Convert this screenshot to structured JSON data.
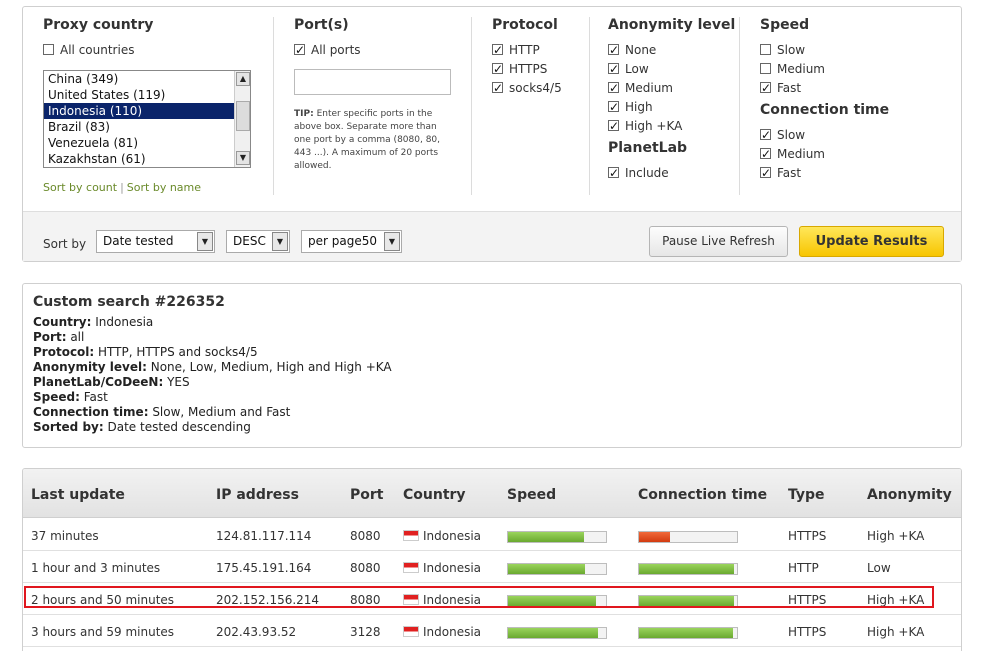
{
  "filters": {
    "proxy_country": {
      "title": "Proxy country",
      "all_label": "All countries",
      "all_checked": false,
      "options": [
        "China (349)",
        "United States (119)",
        "Indonesia (110)",
        "Brazil (83)",
        "Venezuela (81)",
        "Kazakhstan (61)"
      ],
      "selected_index": 2,
      "sort_by_count": "Sort by count",
      "sort_separator": "|",
      "sort_by_name": "Sort by name"
    },
    "ports": {
      "title": "Port(s)",
      "all_label": "All ports",
      "all_checked": true,
      "input_value": "",
      "tip_label": "TIP:",
      "tip_text": "Enter specific ports in the above box. Separate more than one port by a comma (8080, 80, 443 ...). A maximum of 20 ports allowed."
    },
    "protocol": {
      "title": "Protocol",
      "options": [
        {
          "label": "HTTP",
          "checked": true
        },
        {
          "label": "HTTPS",
          "checked": true
        },
        {
          "label": "socks4/5",
          "checked": true
        }
      ]
    },
    "anonymity": {
      "title": "Anonymity level",
      "options": [
        {
          "label": "None",
          "checked": true
        },
        {
          "label": "Low",
          "checked": true
        },
        {
          "label": "Medium",
          "checked": true
        },
        {
          "label": "High",
          "checked": true
        },
        {
          "label": "High +KA",
          "checked": true
        }
      ]
    },
    "planetlab": {
      "title": "PlanetLab",
      "include_label": "Include",
      "include_checked": true
    },
    "speed": {
      "title": "Speed",
      "options": [
        {
          "label": "Slow",
          "checked": false
        },
        {
          "label": "Medium",
          "checked": false
        },
        {
          "label": "Fast",
          "checked": true
        }
      ]
    },
    "connection_time": {
      "title": "Connection time",
      "options": [
        {
          "label": "Slow",
          "checked": true
        },
        {
          "label": "Medium",
          "checked": true
        },
        {
          "label": "Fast",
          "checked": true
        }
      ]
    }
  },
  "sortbar": {
    "label": "Sort by",
    "sort_field": "Date tested",
    "order": "DESC",
    "per_page": "per page50",
    "pause_button": "Pause Live Refresh",
    "update_button": "Update Results"
  },
  "summary": {
    "title": "Custom search #226352",
    "lines": [
      {
        "key": "Country:",
        "value": " Indonesia"
      },
      {
        "key": "Port:",
        "value": " all"
      },
      {
        "key": "Protocol:",
        "value": " HTTP, HTTPS and socks4/5"
      },
      {
        "key": "Anonymity level:",
        "value": " None, Low, Medium, High and High +KA"
      },
      {
        "key": "PlanetLab/CoDeeN:",
        "value": " YES"
      },
      {
        "key": "Speed:",
        "value": " Fast"
      },
      {
        "key": "Connection time:",
        "value": " Slow, Medium and Fast"
      },
      {
        "key": "Sorted by:",
        "value": " Date tested descending"
      }
    ]
  },
  "results": {
    "headers": [
      "Last update",
      "IP address",
      "Port",
      "Country",
      "Speed",
      "Connection time",
      "Type",
      "Anonymity"
    ],
    "rows": [
      {
        "last_update": "37 minutes",
        "ip": "124.81.117.114",
        "port": "8080",
        "country": "Indonesia",
        "speed": 0.78,
        "speed_color": "#6aa930",
        "conn": 0.32,
        "conn_color": "#d23b10",
        "type": "HTTPS",
        "anonymity": "High +KA"
      },
      {
        "last_update": "1 hour and 3 minutes",
        "ip": "175.45.191.164",
        "port": "8080",
        "country": "Indonesia",
        "speed": 0.79,
        "speed_color": "#6aa930",
        "conn": 0.97,
        "conn_color": "#6aa930",
        "type": "HTTP",
        "anonymity": "Low"
      },
      {
        "last_update": "2 hours and 50 minutes",
        "ip": "202.152.156.214",
        "port": "8080",
        "country": "Indonesia",
        "speed": 0.9,
        "speed_color": "#6aa930",
        "conn": 0.97,
        "conn_color": "#6aa930",
        "type": "HTTPS",
        "anonymity": "High +KA"
      },
      {
        "last_update": "3 hours and 59 minutes",
        "ip": "202.43.93.52",
        "port": "3128",
        "country": "Indonesia",
        "speed": 0.92,
        "speed_color": "#6aa930",
        "conn": 0.96,
        "conn_color": "#6aa930",
        "type": "HTTPS",
        "anonymity": "High +KA"
      }
    ]
  },
  "colors": {
    "selected_option": "#0a246a",
    "link_green": "#6a8a2a",
    "update_button": "#f7c500",
    "highlight": "#e0161e"
  }
}
